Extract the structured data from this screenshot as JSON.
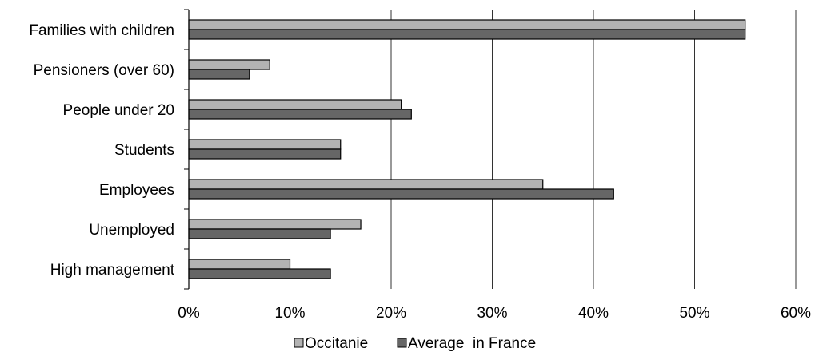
{
  "chart_data": {
    "type": "bar",
    "orientation": "horizontal",
    "title": "",
    "xlabel": "",
    "ylabel": "",
    "categories": [
      "Families with children",
      "Pensioners (over 60)",
      "People under 20",
      "Students",
      "Employees",
      "Unemployed",
      "High management"
    ],
    "series": [
      {
        "name": "Occitanie",
        "color": "#b3b3b3",
        "values": [
          55,
          8,
          21,
          15,
          35,
          17,
          10
        ]
      },
      {
        "name": "Average  in France",
        "color": "#666666",
        "values": [
          55,
          6,
          22,
          15,
          42,
          14,
          14
        ]
      }
    ],
    "xlim": [
      0,
      60
    ],
    "tick_values": [
      0,
      10,
      20,
      30,
      40,
      50,
      60
    ],
    "tick_labels": [
      "0%",
      "10%",
      "20%",
      "30%",
      "40%",
      "50%",
      "60%"
    ],
    "grid": "vertical",
    "legend_position": "bottom"
  }
}
